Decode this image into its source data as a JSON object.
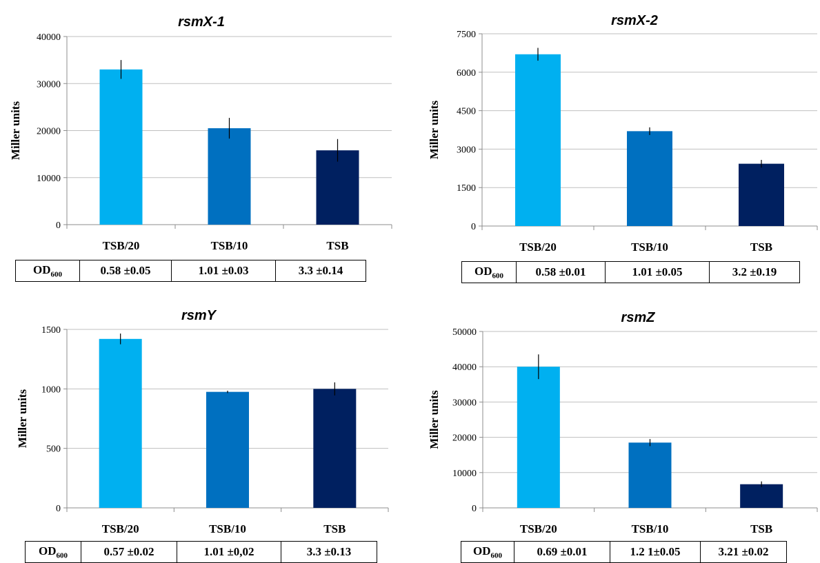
{
  "chart_data": [
    {
      "type": "bar",
      "title": "rsmX-1",
      "ylabel": "Miller units",
      "categories": [
        "TSB/20",
        "TSB/10",
        "TSB"
      ],
      "values": [
        33000,
        20500,
        15800
      ],
      "errors": [
        2000,
        2200,
        2400
      ],
      "ylim": [
        0,
        40000
      ],
      "yticks": [
        "0",
        "10000",
        "20000",
        "30000",
        "40000"
      ],
      "grid": true,
      "colors": [
        "#00b0f0",
        "#0070c0",
        "#002060"
      ],
      "od_table": {
        "header": "OD",
        "header_sub": "600",
        "values": [
          "0.58 ±0.05",
          "1.01 ±0.03",
          "3.3 ±0.14"
        ]
      }
    },
    {
      "type": "bar",
      "title": "rsmX-2",
      "ylabel": "Miller units",
      "categories": [
        "TSB/20",
        "TSB/10",
        "TSB"
      ],
      "values": [
        6700,
        3700,
        2430
      ],
      "errors": [
        250,
        150,
        150
      ],
      "ylim": [
        0,
        7500
      ],
      "yticks": [
        "0",
        "1500",
        "3000",
        "4500",
        "6000",
        "7500"
      ],
      "grid": true,
      "colors": [
        "#00b0f0",
        "#0070c0",
        "#002060"
      ],
      "od_table": {
        "header": "OD",
        "header_sub": "600",
        "values": [
          "0.58 ±0.01",
          "1.01 ±0.05",
          "3.2 ±0.19"
        ]
      }
    },
    {
      "type": "bar",
      "title": "rsmY",
      "ylabel": "Miller units",
      "categories": [
        "TSB/20",
        "TSB/10",
        "TSB"
      ],
      "values": [
        1420,
        975,
        1000
      ],
      "errors": [
        45,
        10,
        55
      ],
      "ylim": [
        0,
        1500
      ],
      "yticks": [
        "0",
        "500",
        "1000",
        "1500"
      ],
      "grid": true,
      "colors": [
        "#00b0f0",
        "#0070c0",
        "#002060"
      ],
      "od_table": {
        "header": "OD",
        "header_sub": "600",
        "values": [
          "0.57 ±0.02",
          "1.01 ±0,02",
          "3.3 ±0.13"
        ]
      }
    },
    {
      "type": "bar",
      "title": "rsmZ",
      "ylabel": "Miller units",
      "categories": [
        "TSB/20",
        "TSB/10",
        "TSB"
      ],
      "values": [
        40000,
        18500,
        6700
      ],
      "errors": [
        3500,
        1000,
        800
      ],
      "ylim": [
        0,
        50000
      ],
      "yticks": [
        "0",
        "10000",
        "20000",
        "30000",
        "40000",
        "50000"
      ],
      "grid": true,
      "colors": [
        "#00b0f0",
        "#0070c0",
        "#002060"
      ],
      "od_table": {
        "header": "OD",
        "header_sub": "600",
        "values": [
          "0.69 ±0.01",
          "1.2 1±0.05",
          "3.21 ±0.02"
        ]
      }
    }
  ]
}
